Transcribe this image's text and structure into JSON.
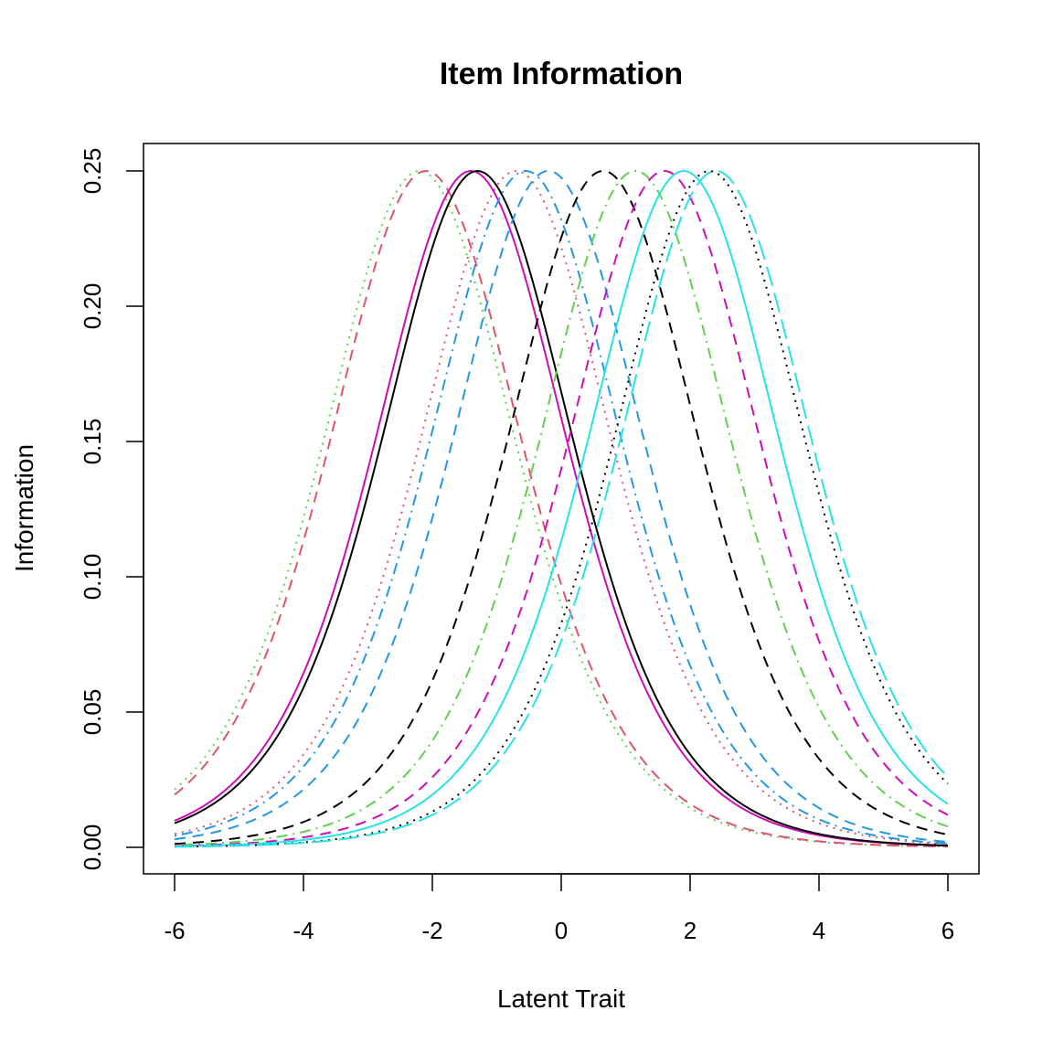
{
  "chart_data": {
    "type": "line",
    "title": "Item Information",
    "xlabel": "Latent Trait",
    "ylabel": "Information",
    "xlim": [
      -6,
      6
    ],
    "ylim": [
      0,
      0.25
    ],
    "x_ticks": [
      "-6",
      "-4",
      "-2",
      "0",
      "2",
      "4",
      "6"
    ],
    "x_tick_values": [
      -6,
      -4,
      -2,
      0,
      2,
      4,
      6
    ],
    "y_ticks": [
      "0.00",
      "0.05",
      "0.10",
      "0.15",
      "0.20",
      "0.25"
    ],
    "y_tick_values": [
      0,
      0.05,
      0.1,
      0.15,
      0.2,
      0.25
    ],
    "grid": false,
    "legend": "none",
    "model": "Rasch item information I(theta) = P(theta)(1 - P(theta)), P = 1/(1+exp(-(theta - b)))",
    "series": [
      {
        "difficulty": -2.2,
        "color": "#61D04F",
        "dash": "dotted"
      },
      {
        "difficulty": -2.1,
        "color": "#DF536B",
        "dash": "dashed"
      },
      {
        "difficulty": -1.4,
        "color": "#CD0BBC",
        "dash": "solid"
      },
      {
        "difficulty": -1.3,
        "color": "#000000",
        "dash": "solid"
      },
      {
        "difficulty": -0.7,
        "color": "#DF536B",
        "dash": "dotted"
      },
      {
        "difficulty": -0.55,
        "color": "#2297E6",
        "dash": "dotdash"
      },
      {
        "difficulty": -0.2,
        "color": "#2297E6",
        "dash": "dashed"
      },
      {
        "difficulty": 0.65,
        "color": "#000000",
        "dash": "dashed"
      },
      {
        "difficulty": 1.15,
        "color": "#61D04F",
        "dash": "dotdash"
      },
      {
        "difficulty": 1.6,
        "color": "#CD0BBC",
        "dash": "dashed"
      },
      {
        "difficulty": 1.9,
        "color": "#28E2E5",
        "dash": "solid"
      },
      {
        "difficulty": 2.3,
        "color": "#000000",
        "dash": "dotted"
      },
      {
        "difficulty": 2.4,
        "color": "#28E2E5",
        "dash": "longdash"
      }
    ]
  }
}
